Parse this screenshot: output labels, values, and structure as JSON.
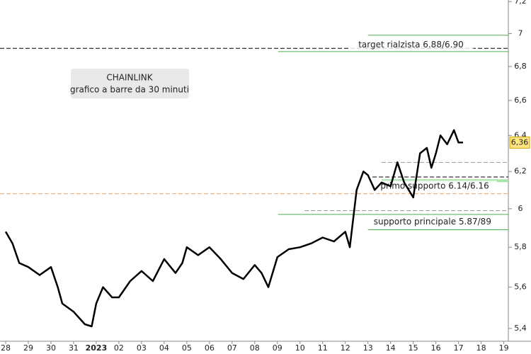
{
  "chart_data": {
    "type": "line",
    "log_scale": true,
    "box_lines": [
      "CHAINLINK",
      "grafico a barre da 30 minuti"
    ],
    "categories": [
      "28",
      "29",
      "30",
      "31",
      "2023",
      "02",
      "03",
      "04",
      "05",
      "06",
      "07",
      "08",
      "09",
      "10",
      "11",
      "12",
      "13",
      "14",
      "15",
      "16",
      "17",
      "18",
      "19"
    ],
    "xlim": [
      -0.25,
      22.2
    ],
    "ylim": [
      5.28,
      7.21
    ],
    "yticks": [
      {
        "value": 7.2,
        "label": "7,2"
      },
      7,
      {
        "value": 6.8,
        "label": "6,8"
      },
      {
        "value": 6.6,
        "label": "6,6"
      },
      {
        "value": 6.4,
        "label": "6,4"
      },
      {
        "value": 6.2,
        "label": "6,2"
      },
      6,
      {
        "value": 5.8,
        "label": "5,8"
      },
      {
        "value": 5.6,
        "label": "5,6"
      },
      {
        "value": 5.4,
        "label": "5,4"
      }
    ],
    "series": [
      {
        "color": "#000000",
        "x": [
          0,
          0.3,
          0.6,
          1,
          1.5,
          2,
          2.3,
          2.5,
          3,
          3.5,
          3.8,
          4,
          4.3,
          4.7,
          5,
          5.5,
          6,
          6.5,
          7,
          7.5,
          7.8,
          8,
          8.5,
          9,
          9.5,
          10,
          10.5,
          11,
          11.3,
          11.6,
          12,
          12.5,
          13,
          13.5,
          14,
          14.5,
          15,
          15.2,
          15.5,
          15.8,
          16,
          16.3,
          16.6,
          17,
          17.3,
          17.6,
          18,
          18.3,
          18.6,
          18.8,
          19,
          19.2,
          19.5,
          19.8,
          20,
          20.2
        ],
        "values": [
          5.88,
          5.82,
          5.72,
          5.7,
          5.66,
          5.7,
          5.6,
          5.52,
          5.48,
          5.42,
          5.41,
          5.52,
          5.6,
          5.55,
          5.55,
          5.63,
          5.68,
          5.63,
          5.74,
          5.67,
          5.72,
          5.8,
          5.76,
          5.8,
          5.74,
          5.67,
          5.64,
          5.71,
          5.67,
          5.6,
          5.75,
          5.79,
          5.8,
          5.82,
          5.85,
          5.83,
          5.88,
          5.8,
          6.1,
          6.2,
          6.18,
          6.1,
          6.14,
          6.12,
          6.25,
          6.14,
          6.06,
          6.3,
          6.33,
          6.22,
          6.3,
          6.4,
          6.35,
          6.43,
          6.36,
          6.36
        ]
      }
    ],
    "last_price": {
      "value": 6.36,
      "label": "6,36"
    },
    "levels": [
      {
        "value": 6.91,
        "color": "#000000",
        "dash": true,
        "from": -0.25
      },
      {
        "value": 6.99,
        "color": "#4caf50",
        "dash": false,
        "from": 16
      },
      {
        "value": 6.89,
        "color": "#4caf50",
        "dash": false,
        "from": 12.03
      },
      {
        "value": 6.25,
        "color": "#999999",
        "dash": true,
        "from": 16.6
      },
      {
        "value": 6.17,
        "color": "#000000",
        "dash": true,
        "from": 16.2
      },
      {
        "value": 6.15,
        "color": "#a5e6a5",
        "dash": false,
        "from": 16.6
      },
      {
        "value": 6.08,
        "color": "#f4a460",
        "dash": true,
        "from": -0.25
      },
      {
        "value": 5.99,
        "color": "#999999",
        "dash": true,
        "from": 13.2
      },
      {
        "value": 5.97,
        "color": "#4caf50",
        "dash": false,
        "from": 12.03
      },
      {
        "value": 5.89,
        "color": "#4caf50",
        "dash": false,
        "from": 16
      }
    ],
    "annotations": [
      {
        "text": "target rialzista 6.88/6.90",
        "x": 17.9,
        "y": 6.93
      },
      {
        "text": "primo supporto 6.14/6.16",
        "x": 18.95,
        "y": 6.12
      },
      {
        "text": "supporto principale 5.87/89",
        "x": 18.85,
        "y": 5.93
      }
    ]
  }
}
